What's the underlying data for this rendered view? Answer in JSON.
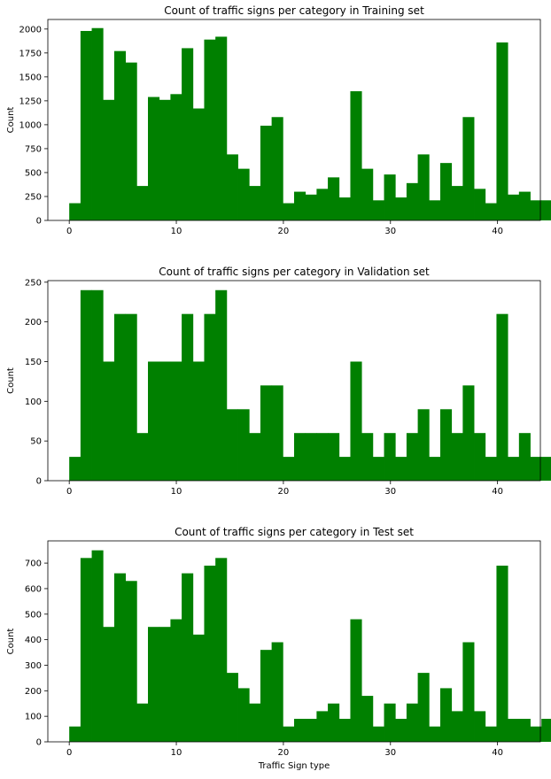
{
  "chart_data": [
    {
      "type": "bar",
      "title": "Count of traffic signs per category in Training set",
      "xlabel": "",
      "ylabel": "Count",
      "xlim": [
        -2,
        44
      ],
      "ylim": [
        0,
        2100
      ],
      "xticks": [
        0,
        10,
        20,
        30,
        40
      ],
      "yticks": [
        0,
        250,
        500,
        750,
        1000,
        1250,
        1500,
        1750,
        2000
      ],
      "bin_start": 0,
      "bin_width": 1.05,
      "values": [
        180,
        1980,
        2010,
        1260,
        1770,
        1650,
        360,
        1290,
        1260,
        1320,
        1800,
        1170,
        1890,
        1920,
        690,
        540,
        360,
        990,
        1080,
        180,
        300,
        270,
        330,
        450,
        240,
        1350,
        540,
        210,
        480,
        240,
        390,
        690,
        210,
        600,
        360,
        1080,
        330,
        180,
        1860,
        270,
        300,
        210,
        210
      ],
      "color": "#008000",
      "grid": false
    },
    {
      "type": "bar",
      "title": "Count of traffic signs per category in Validation set",
      "xlabel": "",
      "ylabel": "Count",
      "xlim": [
        -2,
        44
      ],
      "ylim": [
        0,
        252
      ],
      "xticks": [
        0,
        10,
        20,
        30,
        40
      ],
      "yticks": [
        0,
        50,
        100,
        150,
        200,
        250
      ],
      "bin_start": 0,
      "bin_width": 1.05,
      "values": [
        30,
        240,
        240,
        150,
        210,
        210,
        60,
        150,
        150,
        150,
        210,
        150,
        210,
        240,
        90,
        90,
        60,
        120,
        120,
        30,
        60,
        60,
        60,
        60,
        30,
        150,
        60,
        30,
        60,
        30,
        60,
        90,
        30,
        90,
        60,
        120,
        60,
        30,
        210,
        30,
        60,
        30,
        30
      ],
      "color": "#008000",
      "grid": false
    },
    {
      "type": "bar",
      "title": "Count of traffic signs per category in Test set",
      "xlabel": "Traffic Sign type",
      "ylabel": "Count",
      "xlim": [
        -2,
        44
      ],
      "ylim": [
        0,
        787
      ],
      "xticks": [
        0,
        10,
        20,
        30,
        40
      ],
      "yticks": [
        0,
        100,
        200,
        300,
        400,
        500,
        600,
        700
      ],
      "bin_start": 0,
      "bin_width": 1.05,
      "values": [
        60,
        720,
        750,
        450,
        660,
        630,
        150,
        450,
        450,
        480,
        660,
        420,
        690,
        720,
        270,
        210,
        150,
        360,
        390,
        60,
        90,
        90,
        120,
        150,
        90,
        480,
        180,
        60,
        150,
        90,
        150,
        270,
        60,
        210,
        120,
        390,
        120,
        60,
        690,
        90,
        90,
        60,
        90
      ],
      "color": "#008000",
      "grid": false
    }
  ]
}
